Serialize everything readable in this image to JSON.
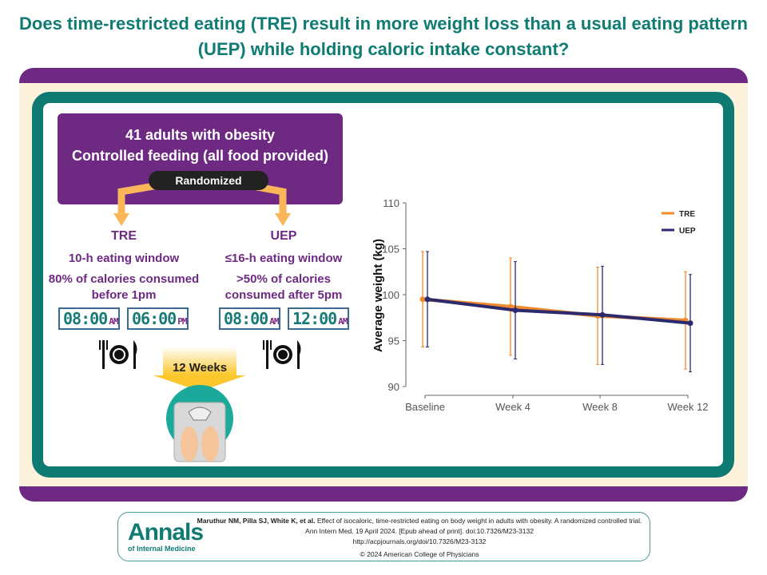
{
  "title": "Does time-restricted eating (TRE) result in more weight loss than a usual eating pattern (UEP) while holding caloric intake constant?",
  "population": {
    "line1": "41 adults with obesity",
    "line2": "Controlled feeding (all food provided)",
    "randomized": "Randomized"
  },
  "arms": [
    {
      "name": "TRE",
      "window": "10-h eating window",
      "calories": "80% of calories consumed before 1pm",
      "clock_start": {
        "time": "08:00",
        "ampm": "AM"
      },
      "clock_end": {
        "time": "06:00",
        "ampm": "PM"
      }
    },
    {
      "name": "UEP",
      "window": "≤16-h eating window",
      "calories": ">50% of calories consumed after 5pm",
      "clock_start": {
        "time": "08:00",
        "ampm": "AM"
      },
      "clock_end": {
        "time": "12:00",
        "ampm": "AM"
      }
    }
  ],
  "duration": "12 Weeks",
  "colors": {
    "teal": "#0f7a72",
    "purple": "#6e2a83",
    "tre": "#f08a2c",
    "uep": "#2b2a6e",
    "arrow": "#fbb65a",
    "yellow": "#fcc72c"
  },
  "chart_data": {
    "type": "line",
    "ylabel": "Average weight (kg)",
    "xlabel": "",
    "categories": [
      "Baseline",
      "Week 4",
      "Week 8",
      "Week 12"
    ],
    "ylim": [
      90,
      110
    ],
    "yticks": [
      "90",
      "95",
      "100",
      "105",
      "110"
    ],
    "legend": "top-right",
    "series": [
      {
        "name": "TRE",
        "values": [
          99.5,
          98.7,
          97.7,
          97.2
        ],
        "upper": [
          104.7,
          104.0,
          103.0,
          102.5
        ],
        "lower": [
          94.3,
          93.4,
          92.4,
          91.9
        ]
      },
      {
        "name": "UEP",
        "values": [
          99.5,
          98.3,
          97.8,
          96.9
        ],
        "upper": [
          104.7,
          103.6,
          103.1,
          102.2
        ],
        "lower": [
          94.3,
          93.0,
          92.4,
          91.6
        ]
      }
    ]
  },
  "citation": {
    "logo_main": "Annals",
    "logo_sub": "of Internal Medicine",
    "authors": "Maruthur NM, Pilla SJ, White K, et al.",
    "article": "Effect of isocaloric, time-restricted eating on body weight in adults with obesity. A randomized controlled trial.",
    "journal": "Ann Intern Med. 19 April 2024. [Epub ahead of print]. doi:10.7326/M23-3132",
    "url": "http://acpjournals.org/doi/10.7326/M23-3132",
    "copyright": "© 2024 American College of Physicians"
  }
}
